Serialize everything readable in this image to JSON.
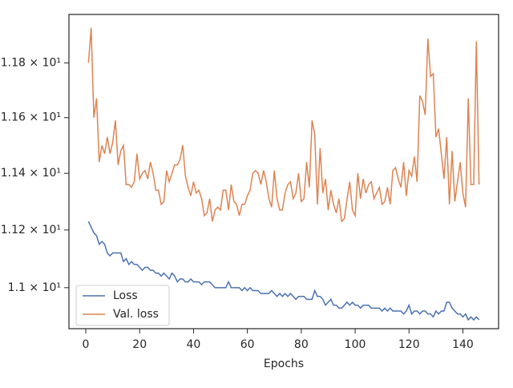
{
  "chart_data": {
    "type": "line",
    "xlabel": "Epochs",
    "x": [
      1,
      2,
      3,
      4,
      5,
      6,
      7,
      8,
      9,
      10,
      11,
      12,
      13,
      14,
      15,
      16,
      17,
      18,
      19,
      20,
      21,
      22,
      23,
      24,
      25,
      26,
      27,
      28,
      29,
      30,
      31,
      32,
      33,
      34,
      35,
      36,
      37,
      38,
      39,
      40,
      41,
      42,
      43,
      44,
      45,
      46,
      47,
      48,
      49,
      50,
      51,
      52,
      53,
      54,
      55,
      56,
      57,
      58,
      59,
      60,
      61,
      62,
      63,
      64,
      65,
      66,
      67,
      68,
      69,
      70,
      71,
      72,
      73,
      74,
      75,
      76,
      77,
      78,
      79,
      80,
      81,
      82,
      83,
      84,
      85,
      86,
      87,
      88,
      89,
      90,
      91,
      92,
      93,
      94,
      95,
      96,
      97,
      98,
      99,
      100,
      101,
      102,
      103,
      104,
      105,
      106,
      107,
      108,
      109,
      110,
      111,
      112,
      113,
      114,
      115,
      116,
      117,
      118,
      119,
      120,
      121,
      122,
      123,
      124,
      125,
      126,
      127,
      128,
      129,
      130,
      131,
      132,
      133,
      134,
      135,
      136,
      137,
      138,
      139,
      140,
      141,
      142,
      143,
      144,
      145,
      146
    ],
    "series": [
      {
        "name": "Loss",
        "color": "#4c72b0",
        "values": [
          11.23,
          11.21,
          11.19,
          11.18,
          11.15,
          11.16,
          11.15,
          11.12,
          11.11,
          11.12,
          11.12,
          11.12,
          11.12,
          11.09,
          11.1,
          11.08,
          11.09,
          11.08,
          11.08,
          11.07,
          11.06,
          11.07,
          11.07,
          11.06,
          11.06,
          11.05,
          11.05,
          11.04,
          11.05,
          11.04,
          11.03,
          11.05,
          11.04,
          11.02,
          11.03,
          11.03,
          11.02,
          11.02,
          11.03,
          11.02,
          11.02,
          11.02,
          11.01,
          11.02,
          11.02,
          11.02,
          11.01,
          11.0,
          11.0,
          11.0,
          11.0,
          11.0,
          11.02,
          11.0,
          11.0,
          11.0,
          11.0,
          10.99,
          11.0,
          10.99,
          11.0,
          10.99,
          10.99,
          10.99,
          10.98,
          10.98,
          10.98,
          10.98,
          10.99,
          10.98,
          10.97,
          10.98,
          10.97,
          10.98,
          10.97,
          10.98,
          10.97,
          10.96,
          10.97,
          10.97,
          10.97,
          10.96,
          10.96,
          10.96,
          10.99,
          10.97,
          10.97,
          10.96,
          10.94,
          10.95,
          10.96,
          10.94,
          10.94,
          10.93,
          10.93,
          10.94,
          10.95,
          10.94,
          10.95,
          10.94,
          10.94,
          10.93,
          10.94,
          10.94,
          10.94,
          10.93,
          10.93,
          10.93,
          10.93,
          10.92,
          10.93,
          10.92,
          10.93,
          10.92,
          10.92,
          10.92,
          10.92,
          10.91,
          10.92,
          10.94,
          10.91,
          10.92,
          10.92,
          10.91,
          10.92,
          10.92,
          10.91,
          10.91,
          10.9,
          10.92,
          10.91,
          10.92,
          10.92,
          10.95,
          10.95,
          10.93,
          10.92,
          10.91,
          10.91,
          10.9,
          10.91,
          10.89,
          10.9,
          10.89,
          10.9,
          10.89
        ]
      },
      {
        "name": "Val. loss",
        "color": "#dd8452",
        "values": [
          11.8,
          11.93,
          11.6,
          11.67,
          11.44,
          11.5,
          11.47,
          11.53,
          11.47,
          11.51,
          11.59,
          11.43,
          11.48,
          11.5,
          11.36,
          11.36,
          11.35,
          11.37,
          11.47,
          11.38,
          11.4,
          11.41,
          11.38,
          11.44,
          11.4,
          11.34,
          11.34,
          11.29,
          11.3,
          11.41,
          11.37,
          11.4,
          11.43,
          11.43,
          11.45,
          11.5,
          11.39,
          11.35,
          11.32,
          11.37,
          11.33,
          11.34,
          11.31,
          11.25,
          11.26,
          11.31,
          11.23,
          11.27,
          11.28,
          11.27,
          11.34,
          11.34,
          11.27,
          11.36,
          11.3,
          11.29,
          11.25,
          11.29,
          11.29,
          11.32,
          11.34,
          11.4,
          11.41,
          11.4,
          11.36,
          11.41,
          11.37,
          11.31,
          11.28,
          11.41,
          11.31,
          11.27,
          11.27,
          11.33,
          11.36,
          11.37,
          11.31,
          11.33,
          11.4,
          11.3,
          11.31,
          11.44,
          11.35,
          11.59,
          11.54,
          11.29,
          11.49,
          11.33,
          11.38,
          11.27,
          11.34,
          11.29,
          11.26,
          11.31,
          11.23,
          11.24,
          11.31,
          11.37,
          11.27,
          11.25,
          11.4,
          11.31,
          11.38,
          11.33,
          11.36,
          11.37,
          11.31,
          11.33,
          11.35,
          11.29,
          11.3,
          11.35,
          11.29,
          11.41,
          11.42,
          11.38,
          11.35,
          11.44,
          11.32,
          11.41,
          11.39,
          11.46,
          11.37,
          11.68,
          11.66,
          11.61,
          11.89,
          11.75,
          11.76,
          11.53,
          11.56,
          11.47,
          11.38,
          11.53,
          11.29,
          11.48,
          11.3,
          11.37,
          11.44,
          11.33,
          11.28,
          11.67,
          11.36,
          11.36,
          11.88,
          11.36
        ]
      }
    ],
    "xlim": [
      -6.25,
      153.25
    ],
    "xticks": [
      0,
      20,
      40,
      60,
      80,
      100,
      120,
      140
    ],
    "ylim": [
      10.86,
      11.98
    ],
    "log_y": true,
    "yticks": [
      {
        "value": 11,
        "label": "1.1 × 10¹"
      },
      {
        "value": 11.2,
        "label": "1.12 × 10¹"
      },
      {
        "value": 11.4,
        "label": "1.14 × 10¹"
      },
      {
        "value": 11.6,
        "label": "1.16 × 10¹"
      },
      {
        "value": 11.8,
        "label": "1.18 × 10¹"
      }
    ],
    "legend": "lower left",
    "grid": false
  }
}
